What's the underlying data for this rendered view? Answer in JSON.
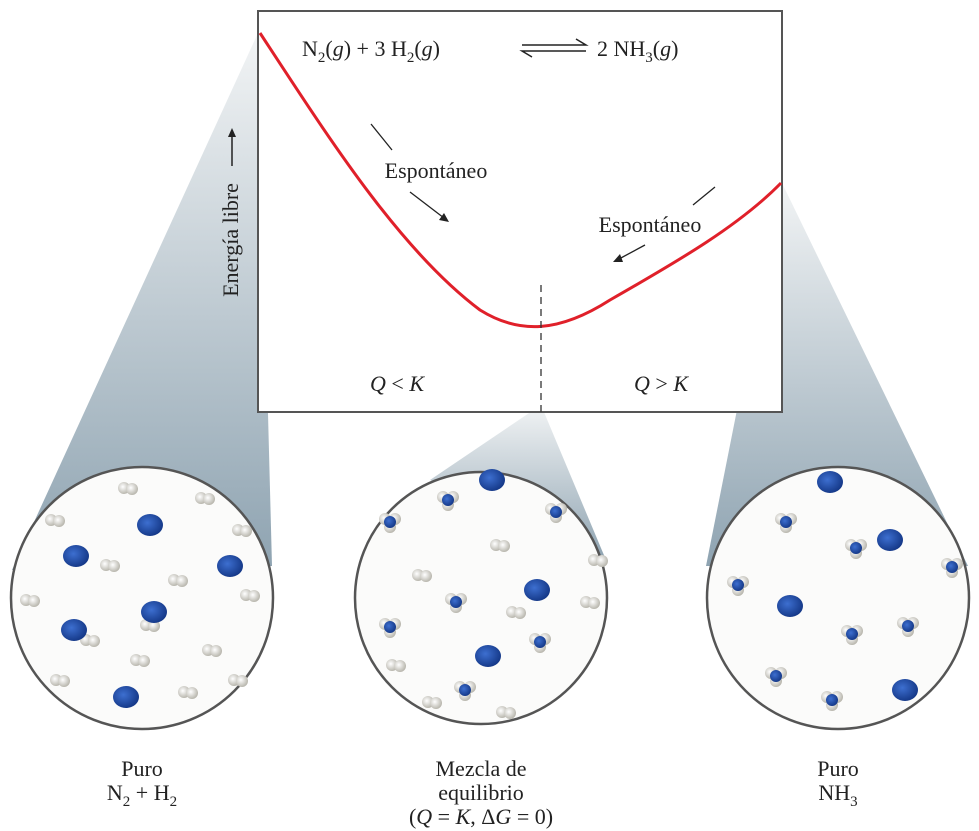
{
  "equation": {
    "reactants": [
      "N",
      "2",
      "(",
      "g",
      ") + 3 H",
      "2",
      "(",
      "g",
      ")"
    ],
    "products": [
      "2 NH",
      "3",
      "(",
      "g",
      ")"
    ]
  },
  "axis_label": "Energía libre",
  "annotations": [
    "Espontáneo",
    "Espontáneo"
  ],
  "regions": [
    [
      "Q",
      " < ",
      "K"
    ],
    [
      "Q",
      " > ",
      "K"
    ]
  ],
  "captions": [
    [
      [
        "Puro"
      ],
      [
        "N",
        "2",
        " + H",
        "2"
      ]
    ],
    [
      [
        "Mezcla de"
      ],
      [
        "equilibrio"
      ],
      [
        "(",
        "Q",
        " = ",
        "K",
        ", Δ",
        "G",
        " = 0)"
      ]
    ],
    [
      [
        "Puro"
      ],
      [
        "NH",
        "3"
      ]
    ]
  ]
}
